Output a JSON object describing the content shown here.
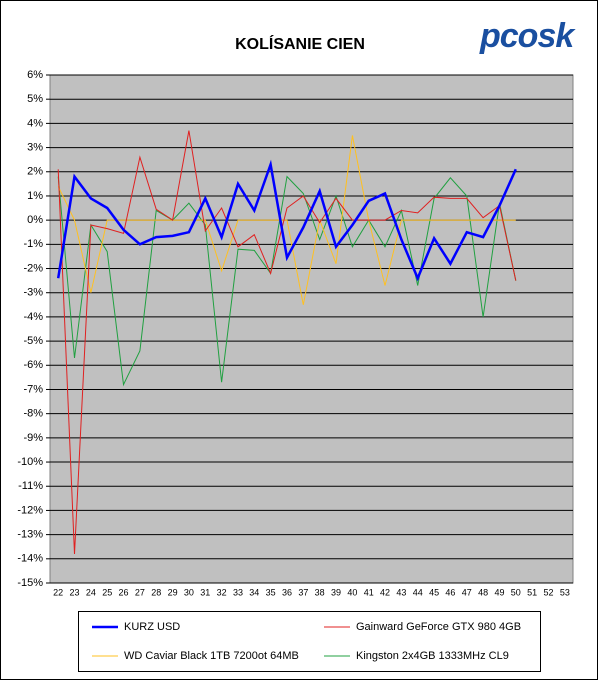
{
  "logo": "pcosk",
  "chart_data": {
    "type": "line",
    "title": "KOLÍSANIE CIEN",
    "categories": [
      "22",
      "23",
      "24",
      "25",
      "26",
      "27",
      "28",
      "29",
      "30",
      "31",
      "32",
      "33",
      "34",
      "35",
      "36",
      "37",
      "38",
      "39",
      "40",
      "41",
      "42",
      "43",
      "44",
      "45",
      "46",
      "47",
      "48",
      "49",
      "50",
      "51",
      "52",
      "53"
    ],
    "ylim": [
      -15,
      6
    ],
    "yticks": [
      {
        "value": 6,
        "label": "6%"
      },
      {
        "value": 5,
        "label": "5%"
      },
      {
        "value": 4,
        "label": "4%"
      },
      {
        "value": 3,
        "label": "3%"
      },
      {
        "value": 2,
        "label": "2%"
      },
      {
        "value": 1,
        "label": "1%"
      },
      {
        "value": 0,
        "label": "0%"
      },
      {
        "value": -1,
        "label": "-1%"
      },
      {
        "value": -2,
        "label": "-2%"
      },
      {
        "value": -3,
        "label": "-3%"
      },
      {
        "value": -4,
        "label": "-4%"
      },
      {
        "value": -5,
        "label": "-5%"
      },
      {
        "value": -6,
        "label": "-6%"
      },
      {
        "value": -7,
        "label": "-7%"
      },
      {
        "value": -8,
        "label": "-8%"
      },
      {
        "value": -9,
        "label": "-9%"
      },
      {
        "value": -10,
        "label": "-10%"
      },
      {
        "value": -11,
        "label": "-11%"
      },
      {
        "value": -12,
        "label": "-12%"
      },
      {
        "value": -13,
        "label": "-13%"
      },
      {
        "value": -14,
        "label": "-14%"
      },
      {
        "value": -15,
        "label": "-15%"
      }
    ],
    "grid": true,
    "series": [
      {
        "name": "KURZ USD",
        "color": "#0000ff",
        "width": 2.5,
        "values": [
          -2.4,
          1.8,
          0.9,
          0.5,
          -0.4,
          -1.0,
          -0.7,
          -0.65,
          -0.5,
          0.9,
          -0.7,
          1.5,
          0.4,
          2.3,
          -1.55,
          -0.3,
          1.2,
          -1.1,
          -0.2,
          0.8,
          1.1,
          -0.8,
          -2.4,
          -0.75,
          -1.8,
          -0.5,
          -0.7,
          0.6,
          2.1,
          null,
          null,
          null
        ]
      },
      {
        "name": "Gainward GeForce GTX 980 4GB",
        "color": "#e02020",
        "width": 1,
        "values": [
          2.1,
          -13.8,
          -0.2,
          -0.35,
          -0.55,
          2.6,
          0.45,
          0,
          3.7,
          -0.45,
          0.5,
          -1.1,
          -0.6,
          -2.2,
          0.5,
          1.0,
          -0.1,
          0.9,
          0,
          0,
          0,
          0.4,
          0.3,
          0.95,
          0.9,
          0.9,
          0.1,
          0.6,
          -2.5,
          null,
          null,
          null
        ]
      },
      {
        "name": "WD Caviar Black 1TB 7200ot 64MB",
        "color": "#ffc020",
        "width": 1,
        "values": [
          1.4,
          0,
          -3.0,
          0,
          0,
          0,
          0,
          0,
          0,
          0,
          -2.1,
          0,
          0,
          0,
          0,
          -3.5,
          0,
          -1.8,
          3.5,
          0,
          -2.7,
          0,
          0,
          0,
          0,
          0,
          0,
          0,
          0,
          null,
          null,
          null
        ]
      },
      {
        "name": "Kingston 2x4GB 1333MHz CL9",
        "color": "#20a040",
        "width": 1,
        "values": [
          1.8,
          -5.7,
          -0.2,
          -1.3,
          -6.8,
          -5.4,
          0.4,
          0,
          0.7,
          -0.2,
          -6.7,
          -1.2,
          -1.25,
          -2.2,
          1.8,
          1.1,
          -0.8,
          1.0,
          -1.1,
          0,
          -1.1,
          0.4,
          -2.7,
          0.9,
          1.75,
          1.0,
          -4.0,
          0.7,
          -2.5,
          null,
          null,
          null
        ]
      }
    ]
  }
}
